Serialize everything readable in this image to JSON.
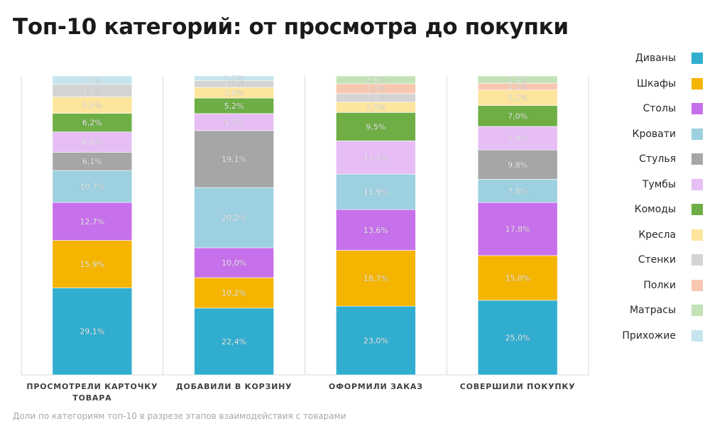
{
  "chart_data": {
    "type": "bar",
    "stacked": true,
    "title": "Топ-10 категорий: от просмотра до покупки",
    "subtitle": "Доли по категориям топ-10 в разрезе этапов взаимодействия с товарами",
    "categories": [
      "ПРОСМОТРЕЛИ КАРТОЧКУ ТОВАРА",
      "ДОБАВИЛИ В КОРЗИНУ",
      "ОФОРМИЛИ ЗАКАЗ",
      "СОВЕРШИЛИ ПОКУПКУ"
    ],
    "category_lines": [
      [
        "ПРОСМОТРЕЛИ КАРТОЧКУ",
        "ТОВАРА"
      ],
      [
        "ДОБАВИЛИ В КОРЗИНУ"
      ],
      [
        "ОФОРМИЛИ ЗАКАЗ"
      ],
      [
        "СОВЕРШИЛИ ПОКУПКУ"
      ]
    ],
    "ylim": [
      0,
      100
    ],
    "value_format": "decimal-comma-percent",
    "legend_position": "right",
    "grid": false,
    "series": [
      {
        "name": "Диваны",
        "color": "#31ADCF",
        "values": [
          29.1,
          22.4,
          23.0,
          25.0
        ]
      },
      {
        "name": "Шкафы",
        "color": "#F5B400",
        "values": [
          15.9,
          10.2,
          18.7,
          15.0
        ]
      },
      {
        "name": "Столы",
        "color": "#C770EB",
        "values": [
          12.7,
          10.0,
          13.6,
          17.8
        ]
      },
      {
        "name": "Кровати",
        "color": "#9DD0E0",
        "values": [
          10.7,
          20.2,
          11.9,
          7.8
        ]
      },
      {
        "name": "Стулья",
        "color": "#A6A6A6",
        "values": [
          6.1,
          19.1,
          0,
          9.8
        ]
      },
      {
        "name": "Тумбы",
        "color": "#E6BEF5",
        "values": [
          6.8,
          5.7,
          11.1,
          7.9
        ]
      },
      {
        "name": "Комоды",
        "color": "#6EAE45",
        "values": [
          6.2,
          5.2,
          9.5,
          7.0
        ]
      },
      {
        "name": "Кресла",
        "color": "#FDE59D",
        "values": [
          5.5,
          3.6,
          3.5,
          5.2
        ]
      },
      {
        "name": "Стенки",
        "color": "#D4D4D4",
        "values": [
          4.2,
          2.3,
          2.8,
          0
        ]
      },
      {
        "name": "Полки",
        "color": "#F8C7B0",
        "values": [
          0,
          0,
          3.3,
          2.3
        ]
      },
      {
        "name": "Матрасы",
        "color": "#C3E2B5",
        "values": [
          0,
          0,
          2.6,
          2.4
        ]
      },
      {
        "name": "Прихожие",
        "color": "#C5E5EE",
        "values": [
          2.8,
          1.5,
          0,
          0
        ]
      }
    ]
  }
}
